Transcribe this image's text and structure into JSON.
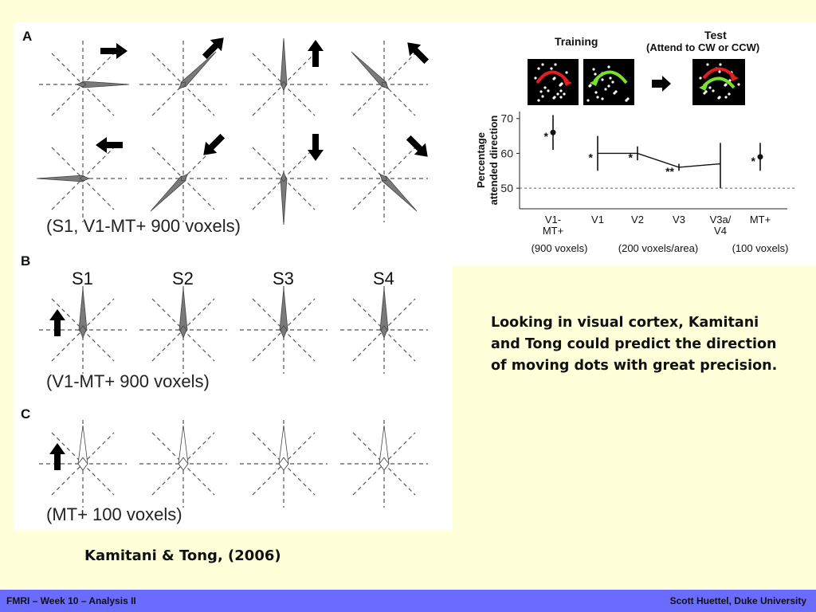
{
  "panels": {
    "a_label": "A",
    "b_label": "B",
    "c_label": "C",
    "a_caption": "(S1, V1-MT+ 900 voxels)",
    "b_caption": "(V1-MT+ 900 voxels)",
    "c_caption": "(MT+ 100 voxels)",
    "subjects": [
      "S1",
      "S2",
      "S3",
      "S4"
    ]
  },
  "inset": {
    "training_label": "Training",
    "test_label": "Test",
    "test_sub": "(Attend to CW or CCW)"
  },
  "chart_data": {
    "type": "scatter",
    "ylabel": "Percentage\nattended direction",
    "ylim": [
      45,
      72
    ],
    "yticks": [
      50,
      60,
      70
    ],
    "chance_line": 50,
    "categories": [
      "V1-\nMT+",
      "V1",
      "V2",
      "V3",
      "V3a/\nV4",
      "MT+"
    ],
    "group_labels": [
      "(900 voxels)",
      "(200 voxels/area)",
      "(100 voxels)"
    ],
    "points": [
      {
        "category": "V1-\nMT+",
        "mean": 66,
        "low": 61,
        "high": 71,
        "sig": "*"
      },
      {
        "category": "V1",
        "mean": 60,
        "low": 55,
        "high": 65,
        "sig": "*"
      },
      {
        "category": "V2",
        "mean": 60,
        "low": 58,
        "high": 62,
        "sig": "*"
      },
      {
        "category": "V3",
        "mean": 56,
        "low": 55,
        "high": 57,
        "sig": "**"
      },
      {
        "category": "V3a/\nV4",
        "mean": 57,
        "low": 50,
        "high": 63,
        "sig": ""
      },
      {
        "category": "MT+",
        "mean": 59,
        "low": 55,
        "high": 63,
        "sig": "*"
      }
    ]
  },
  "description": "Looking in visual cortex, Kamitani and Tong could predict the direction of moving dots with great precision.",
  "citation": "Kamitani & Tong, (2006)",
  "footer": {
    "left": "FMRI – Week 10 – Analysis II",
    "right": "Scott Huettel, Duke University"
  }
}
